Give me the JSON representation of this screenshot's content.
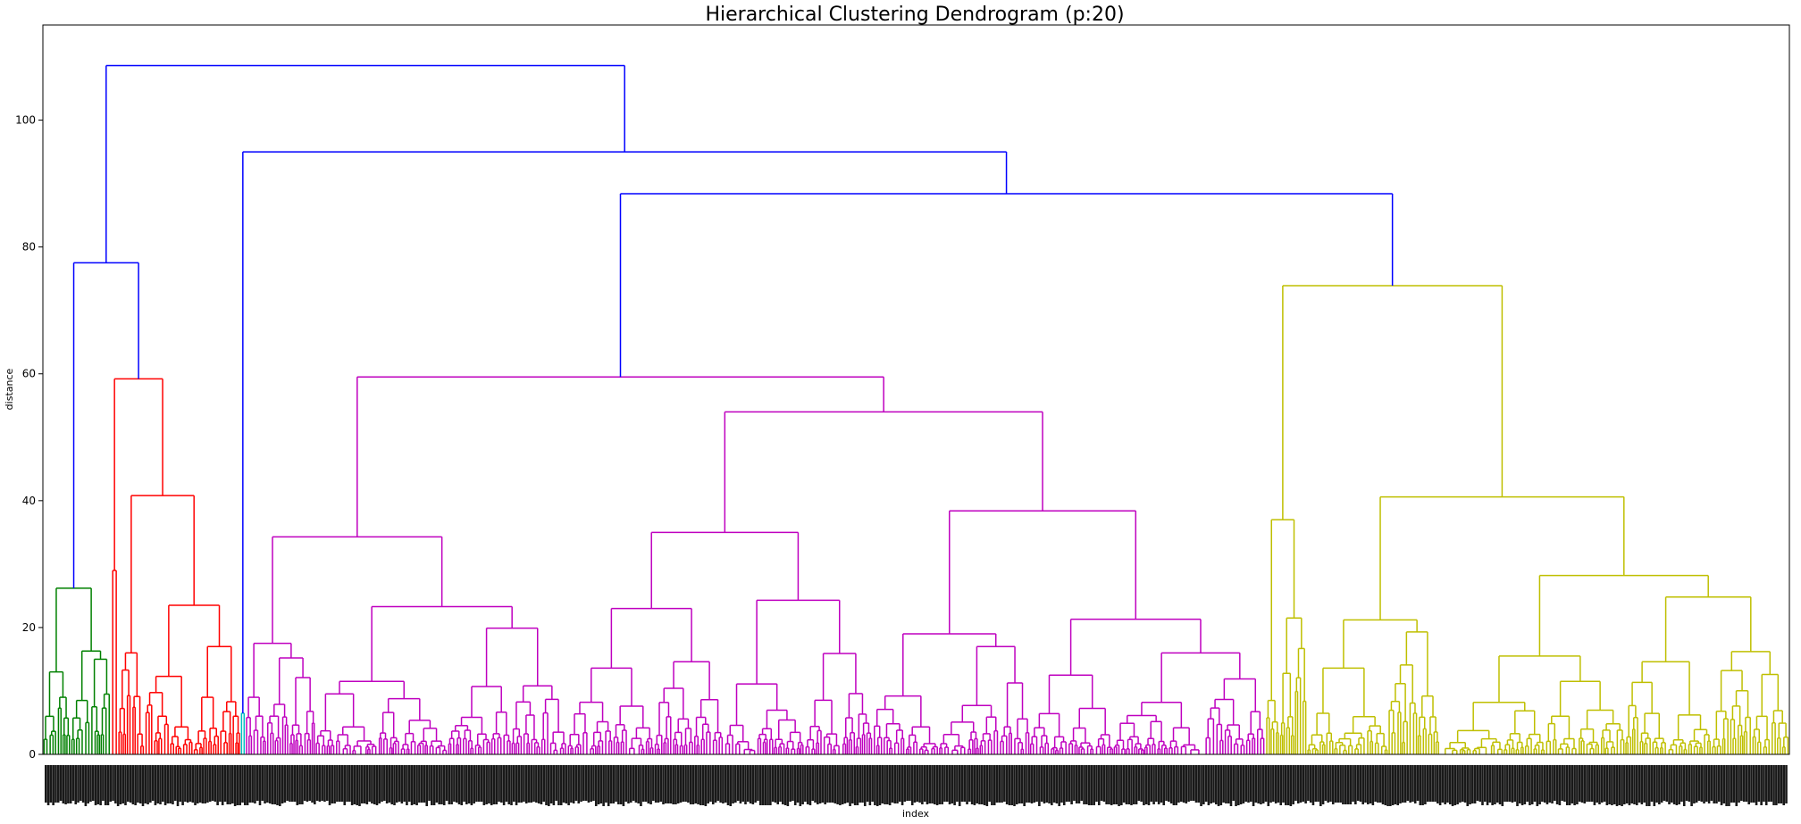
{
  "chart_data": {
    "type": "dendrogram",
    "title": "Hierarchical Clustering Dendrogram (p:20)",
    "xlabel": "index",
    "ylabel": "distance",
    "ylim": [
      0,
      115
    ],
    "yticks": [
      0,
      20,
      40,
      60,
      80,
      100
    ],
    "grid": false,
    "colors": {
      "above_threshold": "#0000ff",
      "green": "#008000",
      "red": "#ff0000",
      "cyan": "#00bfbf",
      "magenta": "#bf00bf",
      "olive": "#bfbf00"
    },
    "clusters": [
      {
        "name": "green",
        "leaf_range": [
          0,
          0.039
        ],
        "height": 26.2
      },
      {
        "name": "red",
        "leaf_range": [
          0.039,
          0.113
        ],
        "height": 59.2
      },
      {
        "name": "cyan",
        "leaf_range": [
          0.113,
          0.116
        ],
        "height": 6.5
      },
      {
        "name": "magenta",
        "leaf_range": [
          0.116,
          0.7
        ],
        "height": 59.5
      },
      {
        "name": "olive",
        "leaf_range": [
          0.7,
          1.0
        ],
        "height": 73.9
      }
    ],
    "top_merges": [
      {
        "height": 108.6,
        "left": 77.5,
        "right": 95.0
      },
      {
        "height": 95.0,
        "left": "cyan",
        "right": 88.4
      },
      {
        "height": 88.4,
        "left": "magenta",
        "right": "olive"
      },
      {
        "height": 77.5,
        "left": "green",
        "right": "red"
      }
    ]
  }
}
